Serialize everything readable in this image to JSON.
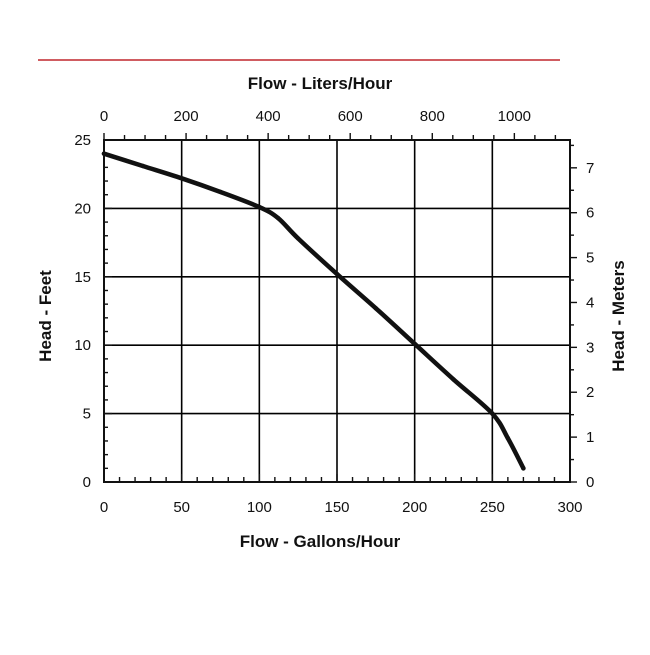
{
  "colors": {
    "rule": "#c0272d",
    "ink": "#111111",
    "grid": "#000000",
    "curve": "#111111"
  },
  "chart_data": {
    "type": "line",
    "title": "",
    "xlabel": "Flow - Gallons/Hour",
    "ylabel": "Head - Feet",
    "x2label": "Flow - Liters/Hour",
    "y2label": "Head - Meters",
    "xlim": [
      0,
      300
    ],
    "ylim": [
      0,
      25
    ],
    "x2lim": [
      0,
      1135.6
    ],
    "y2lim": [
      0,
      7.62
    ],
    "x_ticks": [
      "0",
      "50",
      "100",
      "150",
      "200",
      "250",
      "300"
    ],
    "y_ticks": [
      "0",
      "5",
      "10",
      "15",
      "20",
      "25"
    ],
    "x2_ticks": [
      "0",
      "200",
      "400",
      "600",
      "800",
      "1000"
    ],
    "y2_ticks": [
      "0",
      "1",
      "2",
      "3",
      "4",
      "5",
      "6",
      "7"
    ],
    "grid": true,
    "legend": "none",
    "series": [
      {
        "x": [
          0,
          25,
          50,
          75,
          100,
          112,
          125,
          150,
          175,
          200,
          225,
          250,
          260,
          270
        ],
        "y": [
          24,
          23.1,
          22.2,
          21.2,
          20.1,
          19.3,
          17.8,
          15.2,
          12.7,
          10.1,
          7.5,
          5,
          3.2,
          1
        ]
      }
    ]
  }
}
